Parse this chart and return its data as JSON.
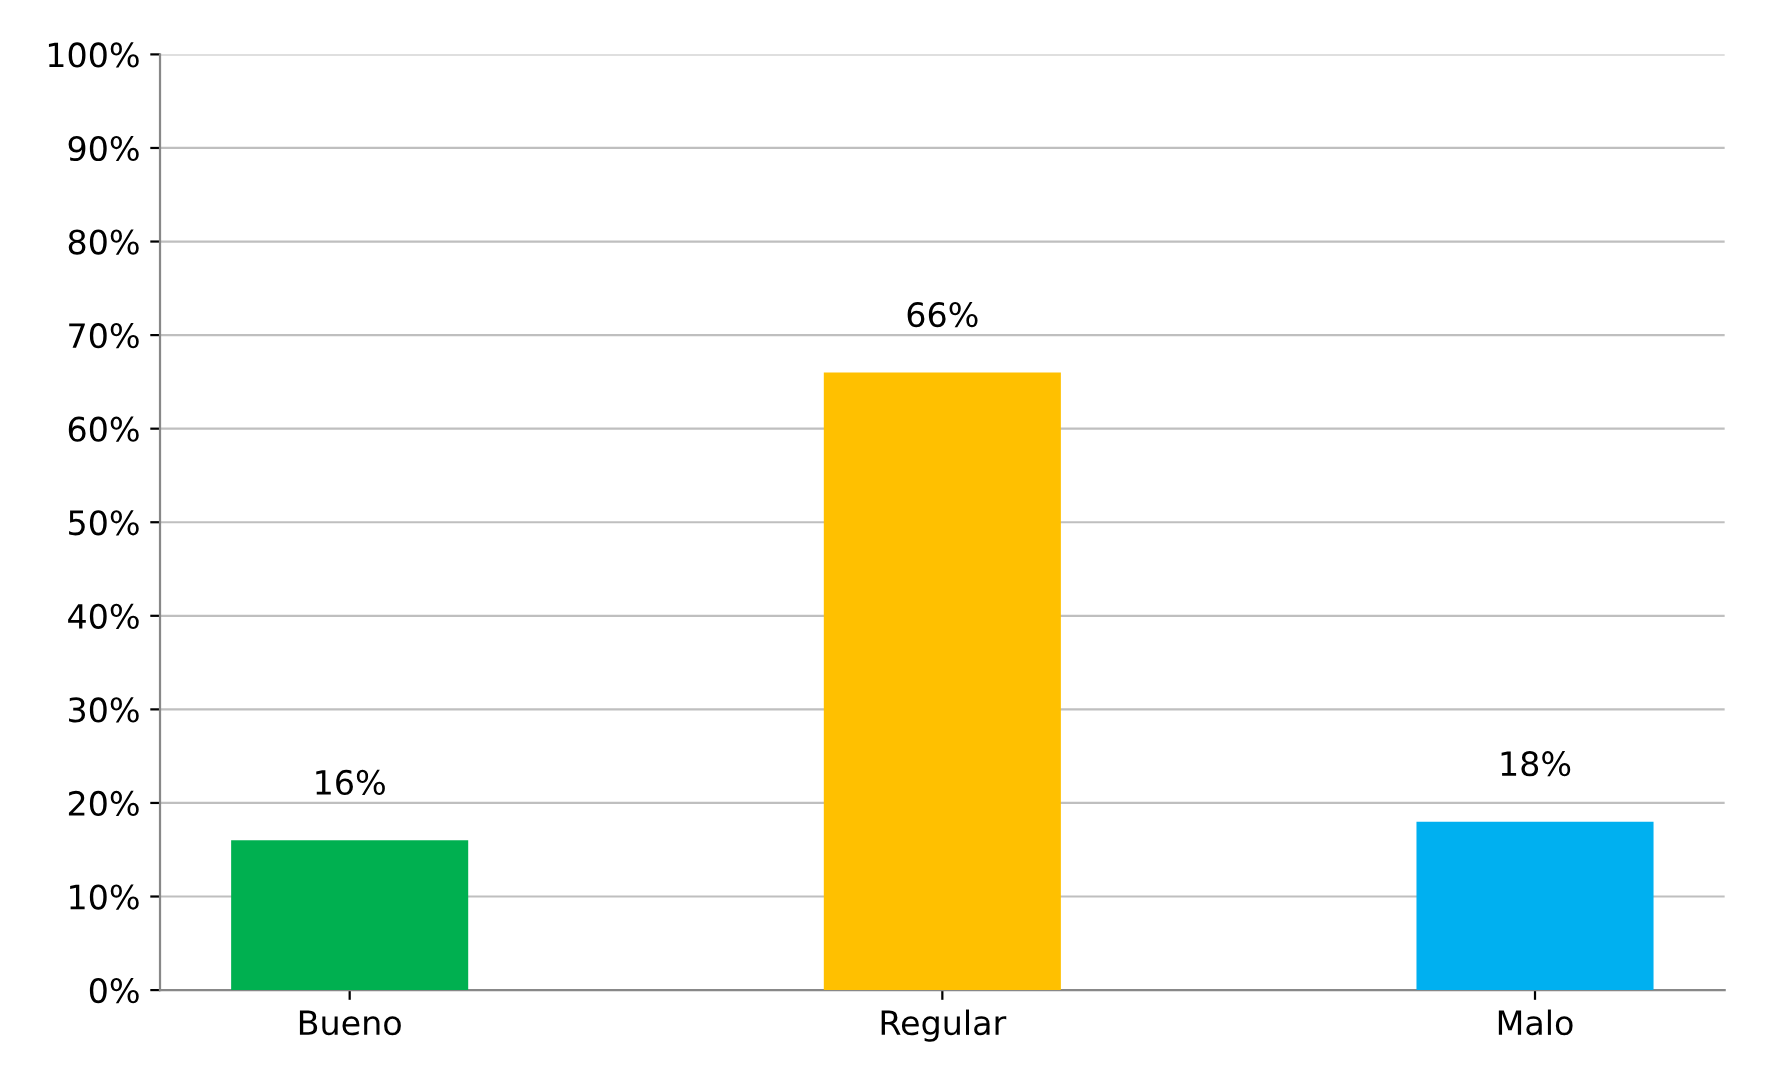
{
  "chart_data": {
    "type": "bar",
    "categories": [
      "Bueno",
      "Regular",
      "Malo"
    ],
    "values": [
      16,
      66,
      18
    ],
    "colors": [
      "#00b050",
      "#ffc000",
      "#00b0f0"
    ],
    "value_labels": [
      "16%",
      "66%",
      "18%"
    ],
    "ylim": [
      0,
      100
    ],
    "yticks": [
      {
        "value": 0,
        "label": "0%"
      },
      {
        "value": 10,
        "label": "10%"
      },
      {
        "value": 20,
        "label": "20%"
      },
      {
        "value": 30,
        "label": "30%"
      },
      {
        "value": 40,
        "label": "40%"
      },
      {
        "value": 50,
        "label": "50%"
      },
      {
        "value": 60,
        "label": "60%"
      },
      {
        "value": 70,
        "label": "70%"
      },
      {
        "value": 80,
        "label": "80%"
      },
      {
        "value": 90,
        "label": "90%"
      },
      {
        "value": 100,
        "label": "100%"
      }
    ],
    "grid": "y",
    "legend": false
  }
}
